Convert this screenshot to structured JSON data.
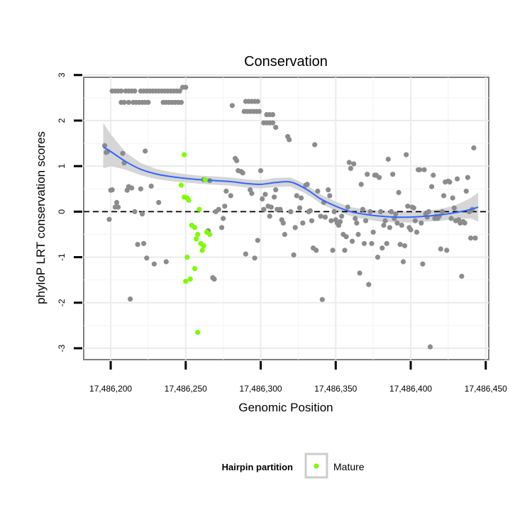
{
  "chart_data": {
    "type": "scatter",
    "title": "Conservation",
    "xlabel": "Genomic Position",
    "ylabel": "phyloP LRT conservation scores",
    "xlim": [
      17486182,
      17486452
    ],
    "ylim": [
      -3.25,
      2.95
    ],
    "xticks": [
      17486200,
      17486250,
      17486300,
      17486350,
      17486400,
      17486450
    ],
    "xtick_labels": [
      "17,486,200",
      "17,486,250",
      "17,486,300",
      "17,486,350",
      "17,486,400",
      "17,486,450"
    ],
    "yticks": [
      -3,
      -2,
      -1,
      0,
      1,
      2,
      3
    ],
    "ytick_labels": [
      "-3",
      "-2",
      "-1",
      "0",
      "1",
      "2",
      "3"
    ],
    "reference_line": {
      "y": 0,
      "style": "dashed"
    },
    "legend": {
      "title": "Hairpin partition",
      "entries": [
        {
          "label": "Mature",
          "color": "#7cfc00"
        }
      ],
      "position": "bottom"
    },
    "colors": {
      "other": "#8c8c8c",
      "mature": "#7cfc00",
      "smooth": "#3366ff",
      "band": "#cfcfcf"
    },
    "series": [
      {
        "name": "Other",
        "points": [
          [
            17486196,
            1.45
          ],
          [
            17486197,
            1.3
          ],
          [
            17486198,
            1.32
          ],
          [
            17486199,
            -0.17
          ],
          [
            17486200,
            0.47
          ],
          [
            17486201,
            0.48
          ],
          [
            17486203,
            0.1
          ],
          [
            17486204,
            0.2
          ],
          [
            17486205,
            0.1
          ],
          [
            17486208,
            1.28
          ],
          [
            17486209,
            1.07
          ],
          [
            17486211,
            0.47
          ],
          [
            17486212,
            0.55
          ],
          [
            17486213,
            -1.92
          ],
          [
            17486214,
            0.52
          ],
          [
            17486216,
            0.0
          ],
          [
            17486218,
            -0.72
          ],
          [
            17486220,
            0.5
          ],
          [
            17486221,
            -0.05
          ],
          [
            17486222,
            -0.7
          ],
          [
            17486223,
            1.33
          ],
          [
            17486224,
            -1.02
          ],
          [
            17486227,
            0.56
          ],
          [
            17486229,
            -1.15
          ],
          [
            17486232,
            0.2
          ],
          [
            17486237,
            -1.1
          ],
          [
            17486262,
            0.7
          ],
          [
            17486265,
            -0.42
          ],
          [
            17486266,
            0.68
          ],
          [
            17486268,
            -1.45
          ],
          [
            17486269,
            -1.48
          ],
          [
            17486270,
            0.0
          ],
          [
            17486272,
            0.05
          ],
          [
            17486274,
            -0.35
          ],
          [
            17486275,
            -0.15
          ],
          [
            17486276,
            0.12
          ],
          [
            17486277,
            0.45
          ],
          [
            17486280,
            0.35
          ],
          [
            17486281,
            2.33
          ],
          [
            17486283,
            1.17
          ],
          [
            17486284,
            1.12
          ],
          [
            17486285,
            0.9
          ],
          [
            17486287,
            0.88
          ],
          [
            17486288,
            0.85
          ],
          [
            17486290,
            -0.93
          ],
          [
            17486293,
            0.48
          ],
          [
            17486294,
            0.4
          ],
          [
            17486296,
            -1.02
          ],
          [
            17486298,
            -0.63
          ],
          [
            17486300,
            0.9
          ],
          [
            17486301,
            0.28
          ],
          [
            17486302,
            0.05
          ],
          [
            17486303,
            0.38
          ],
          [
            17486305,
            0.12
          ],
          [
            17486306,
            -0.1
          ],
          [
            17486307,
            0.1
          ],
          [
            17486309,
            0.32
          ],
          [
            17486310,
            0.48
          ],
          [
            17486311,
            0.05
          ],
          [
            17486313,
            0.05
          ],
          [
            17486314,
            -0.18
          ],
          [
            17486315,
            -0.25
          ],
          [
            17486316,
            -0.5
          ],
          [
            17486318,
            1.65
          ],
          [
            17486319,
            1.58
          ],
          [
            17486320,
            0.0
          ],
          [
            17486322,
            -0.95
          ],
          [
            17486323,
            -0.35
          ],
          [
            17486324,
            0.35
          ],
          [
            17486326,
            0.08
          ],
          [
            17486327,
            0.3
          ],
          [
            17486328,
            -0.25
          ],
          [
            17486330,
            0.58
          ],
          [
            17486331,
            0.6
          ],
          [
            17486332,
            0.0
          ],
          [
            17486333,
            0.02
          ],
          [
            17486334,
            -0.2
          ],
          [
            17486335,
            -0.8
          ],
          [
            17486336,
            1.47
          ],
          [
            17486337,
            -0.85
          ],
          [
            17486338,
            0.45
          ],
          [
            17486340,
            -0.1
          ],
          [
            17486341,
            -1.93
          ],
          [
            17486342,
            0.2
          ],
          [
            17486343,
            -0.12
          ],
          [
            17486345,
            0.48
          ],
          [
            17486346,
            0.35
          ],
          [
            17486347,
            -0.2
          ],
          [
            17486348,
            -0.85
          ],
          [
            17486349,
            0.0
          ],
          [
            17486350,
            -0.18
          ],
          [
            17486351,
            -0.25
          ],
          [
            17486352,
            -0.3
          ],
          [
            17486353,
            -0.22
          ],
          [
            17486354,
            -0.1
          ],
          [
            17486355,
            -0.5
          ],
          [
            17486356,
            -0.85
          ],
          [
            17486357,
            -0.55
          ],
          [
            17486358,
            0.1
          ],
          [
            17486359,
            1.08
          ],
          [
            17486360,
            0.95
          ],
          [
            17486361,
            -0.65
          ],
          [
            17486362,
            1.05
          ],
          [
            17486363,
            -0.15
          ],
          [
            17486364,
            -0.25
          ],
          [
            17486365,
            -0.5
          ],
          [
            17486366,
            -1.35
          ],
          [
            17486367,
            0.6
          ],
          [
            17486368,
            0.05
          ],
          [
            17486369,
            -0.7
          ],
          [
            17486370,
            -0.2
          ],
          [
            17486371,
            0.82
          ],
          [
            17486372,
            -1.6
          ],
          [
            17486373,
            0.0
          ],
          [
            17486374,
            -0.7
          ],
          [
            17486375,
            -0.45
          ],
          [
            17486376,
            0.8
          ],
          [
            17486377,
            0.8
          ],
          [
            17486378,
            -1.0
          ],
          [
            17486379,
            0.75
          ],
          [
            17486380,
            0.0
          ],
          [
            17486381,
            -0.8
          ],
          [
            17486382,
            -0.3
          ],
          [
            17486383,
            -0.2
          ],
          [
            17486384,
            -0.7
          ],
          [
            17486385,
            1.15
          ],
          [
            17486386,
            -0.35
          ],
          [
            17486387,
            0.0
          ],
          [
            17486388,
            0.82
          ],
          [
            17486389,
            -0.15
          ],
          [
            17486390,
            -0.05
          ],
          [
            17486391,
            -0.25
          ],
          [
            17486392,
            0.42
          ],
          [
            17486393,
            -0.72
          ],
          [
            17486394,
            -0.3
          ],
          [
            17486395,
            -1.1
          ],
          [
            17486396,
            -0.75
          ],
          [
            17486397,
            1.25
          ],
          [
            17486398,
            0.12
          ],
          [
            17486399,
            -0.35
          ],
          [
            17486400,
            -0.4
          ],
          [
            17486401,
            0.1
          ],
          [
            17486402,
            0.08
          ],
          [
            17486403,
            -0.2
          ],
          [
            17486404,
            -0.45
          ],
          [
            17486405,
            0.92
          ],
          [
            17486406,
            0.92
          ],
          [
            17486407,
            -0.25
          ],
          [
            17486408,
            -1.15
          ],
          [
            17486409,
            0.92
          ],
          [
            17486410,
            -0.05
          ],
          [
            17486411,
            -0.12
          ],
          [
            17486412,
            0.0
          ],
          [
            17486413,
            -2.97
          ],
          [
            17486414,
            0.55
          ],
          [
            17486415,
            0.8
          ],
          [
            17486416,
            -0.15
          ],
          [
            17486417,
            -0.1
          ],
          [
            17486418,
            -0.15
          ],
          [
            17486419,
            -0.1
          ],
          [
            17486420,
            -0.82
          ],
          [
            17486421,
            0.0
          ],
          [
            17486422,
            0.35
          ],
          [
            17486423,
            0.65
          ],
          [
            17486424,
            -0.85
          ],
          [
            17486425,
            0.67
          ],
          [
            17486426,
            0.65
          ],
          [
            17486427,
            -0.15
          ],
          [
            17486428,
            0.3
          ],
          [
            17486429,
            0.08
          ],
          [
            17486430,
            -0.2
          ],
          [
            17486431,
            0.72
          ],
          [
            17486432,
            -0.18
          ],
          [
            17486433,
            -0.25
          ],
          [
            17486434,
            -1.42
          ],
          [
            17486435,
            -0.22
          ],
          [
            17486436,
            -0.25
          ],
          [
            17486437,
            0.45
          ],
          [
            17486438,
            0.75
          ],
          [
            17486439,
            0.0
          ],
          [
            17486440,
            -0.58
          ],
          [
            17486441,
            0.05
          ],
          [
            17486442,
            1.4
          ],
          [
            17486443,
            -0.58
          ],
          [
            17486201,
            2.65
          ],
          [
            17486203,
            2.65
          ],
          [
            17486205,
            2.65
          ],
          [
            17486207,
            2.65
          ],
          [
            17486210,
            2.65
          ],
          [
            17486212,
            2.65
          ],
          [
            17486214,
            2.65
          ],
          [
            17486216,
            2.65
          ],
          [
            17486220,
            2.65
          ],
          [
            17486222,
            2.65
          ],
          [
            17486224,
            2.65
          ],
          [
            17486226,
            2.65
          ],
          [
            17486228,
            2.65
          ],
          [
            17486230,
            2.65
          ],
          [
            17486232,
            2.65
          ],
          [
            17486234,
            2.65
          ],
          [
            17486236,
            2.65
          ],
          [
            17486238,
            2.65
          ],
          [
            17486240,
            2.65
          ],
          [
            17486242,
            2.65
          ],
          [
            17486244,
            2.65
          ],
          [
            17486246,
            2.65
          ],
          [
            17486248,
            2.73
          ],
          [
            17486250,
            2.73
          ],
          [
            17486207,
            2.4
          ],
          [
            17486209,
            2.4
          ],
          [
            17486212,
            2.4
          ],
          [
            17486215,
            2.4
          ],
          [
            17486217,
            2.4
          ],
          [
            17486219,
            2.4
          ],
          [
            17486221,
            2.4
          ],
          [
            17486223,
            2.4
          ],
          [
            17486225,
            2.4
          ],
          [
            17486235,
            2.4
          ],
          [
            17486237,
            2.4
          ],
          [
            17486239,
            2.4
          ],
          [
            17486241,
            2.4
          ],
          [
            17486243,
            2.4
          ],
          [
            17486245,
            2.4
          ],
          [
            17486247,
            2.4
          ],
          [
            17486290,
            2.42
          ],
          [
            17486292,
            2.42
          ],
          [
            17486294,
            2.42
          ],
          [
            17486296,
            2.42
          ],
          [
            17486298,
            2.42
          ],
          [
            17486289,
            2.2
          ],
          [
            17486291,
            2.2
          ],
          [
            17486293,
            2.2
          ],
          [
            17486295,
            2.2
          ],
          [
            17486297,
            2.2
          ],
          [
            17486299,
            2.2
          ],
          [
            17486304,
            2.13
          ],
          [
            17486306,
            2.13
          ],
          [
            17486308,
            2.13
          ],
          [
            17486302,
            1.95
          ],
          [
            17486304,
            1.95
          ],
          [
            17486306,
            1.95
          ],
          [
            17486308,
            1.95
          ],
          [
            17486310,
            1.85
          ]
        ]
      },
      {
        "name": "Mature",
        "points": [
          [
            17486249,
            1.25
          ],
          [
            17486247,
            0.58
          ],
          [
            17486249,
            0.32
          ],
          [
            17486251,
            0.3
          ],
          [
            17486252,
            0.25
          ],
          [
            17486254,
            -0.3
          ],
          [
            17486256,
            -0.35
          ],
          [
            17486258,
            -0.5
          ],
          [
            17486257,
            -0.6
          ],
          [
            17486259,
            0.05
          ],
          [
            17486260,
            -0.7
          ],
          [
            17486262,
            -0.75
          ],
          [
            17486261,
            -0.85
          ],
          [
            17486263,
            0.7
          ],
          [
            17486264,
            -0.45
          ],
          [
            17486266,
            -0.5
          ],
          [
            17486251,
            -1.0
          ],
          [
            17486256,
            -1.25
          ],
          [
            17486253,
            -1.48
          ],
          [
            17486250,
            -1.53
          ],
          [
            17486258,
            -2.65
          ]
        ]
      }
    ],
    "smooth": {
      "x": [
        17486195,
        17486200,
        17486210,
        17486220,
        17486230,
        17486240,
        17486250,
        17486260,
        17486270,
        17486280,
        17486290,
        17486300,
        17486310,
        17486320,
        17486330,
        17486340,
        17486350,
        17486360,
        17486370,
        17486380,
        17486390,
        17486400,
        17486410,
        17486420,
        17486430,
        17486440,
        17486445
      ],
      "y": [
        1.42,
        1.32,
        1.1,
        0.93,
        0.83,
        0.77,
        0.73,
        0.7,
        0.68,
        0.66,
        0.62,
        0.6,
        0.64,
        0.65,
        0.5,
        0.28,
        0.12,
        0.0,
        -0.06,
        -0.1,
        -0.12,
        -0.12,
        -0.1,
        -0.07,
        -0.02,
        0.05,
        0.1
      ],
      "lower": [
        0.95,
        1.0,
        0.92,
        0.8,
        0.72,
        0.67,
        0.64,
        0.61,
        0.59,
        0.57,
        0.53,
        0.51,
        0.54,
        0.55,
        0.4,
        0.18,
        0.02,
        -0.1,
        -0.17,
        -0.22,
        -0.24,
        -0.24,
        -0.22,
        -0.2,
        -0.16,
        -0.15,
        -0.22
      ],
      "upper": [
        1.95,
        1.7,
        1.3,
        1.07,
        0.94,
        0.87,
        0.82,
        0.79,
        0.77,
        0.75,
        0.71,
        0.69,
        0.74,
        0.75,
        0.6,
        0.38,
        0.22,
        0.1,
        0.05,
        0.02,
        0.0,
        0.0,
        0.02,
        0.06,
        0.14,
        0.3,
        0.42
      ]
    }
  }
}
